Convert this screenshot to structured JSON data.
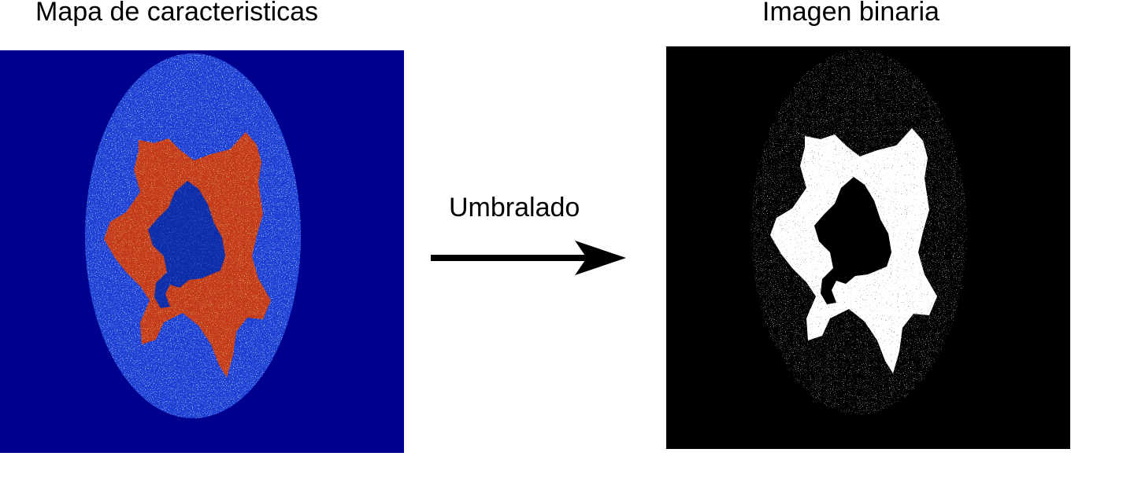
{
  "figure": {
    "left_panel": {
      "caption": "Mapa de caracteristicas",
      "colors": {
        "background": "#00008f",
        "ellipse": "#1f3fd4",
        "region": "#c43a1a",
        "hole": "#0a2fa8"
      }
    },
    "transition": {
      "label": "Umbralado",
      "icon": "right-arrow-icon"
    },
    "right_panel": {
      "caption": "Imagen binaria",
      "colors": {
        "background": "#000000",
        "foreground": "#ffffff"
      }
    }
  }
}
